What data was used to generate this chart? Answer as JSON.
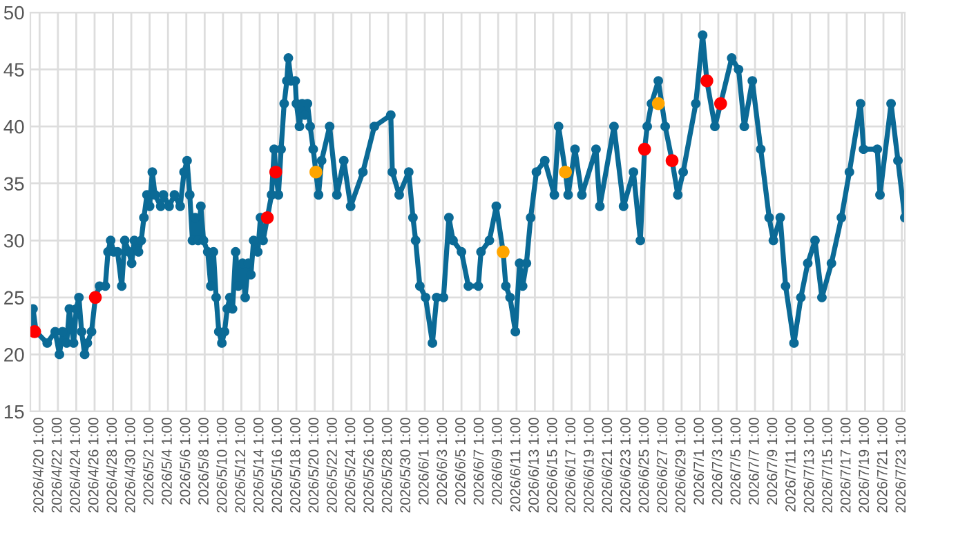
{
  "chart_data": {
    "type": "line",
    "marker": "circle",
    "grid": true,
    "xlim": [
      "2026-04-19T01:00",
      "2026-07-23T09:00"
    ],
    "xticks": [
      {
        "value": "2026-04-20T01:00",
        "label": "2026/4/20 1:00"
      },
      {
        "value": "2026-04-22T01:00",
        "label": "2026/4/22 1:00"
      },
      {
        "value": "2026-04-24T01:00",
        "label": "2026/4/24 1:00"
      },
      {
        "value": "2026-04-26T01:00",
        "label": "2026/4/26 1:00"
      },
      {
        "value": "2026-04-28T01:00",
        "label": "2026/4/28 1:00"
      },
      {
        "value": "2026-04-30T01:00",
        "label": "2026/4/30 1:00"
      },
      {
        "value": "2026-05-02T01:00",
        "label": "2026/5/2 1:00"
      },
      {
        "value": "2026-05-04T01:00",
        "label": "2026/5/4 1:00"
      },
      {
        "value": "2026-05-06T01:00",
        "label": "2026/5/6 1:00"
      },
      {
        "value": "2026-05-08T01:00",
        "label": "2026/5/8 1:00"
      },
      {
        "value": "2026-05-10T01:00",
        "label": "2026/5/10 1:00"
      },
      {
        "value": "2026-05-12T01:00",
        "label": "2026/5/12 1:00"
      },
      {
        "value": "2026-05-14T01:00",
        "label": "2026/5/14 1:00"
      },
      {
        "value": "2026-05-16T01:00",
        "label": "2026/5/16 1:00"
      },
      {
        "value": "2026-05-18T01:00",
        "label": "2026/5/18 1:00"
      },
      {
        "value": "2026-05-20T01:00",
        "label": "2026/5/20 1:00"
      },
      {
        "value": "2026-05-22T01:00",
        "label": "2026/5/22 1:00"
      },
      {
        "value": "2026-05-24T01:00",
        "label": "2026/5/24 1:00"
      },
      {
        "value": "2026-05-26T01:00",
        "label": "2026/5/26 1:00"
      },
      {
        "value": "2026-05-28T01:00",
        "label": "2026/5/28 1:00"
      },
      {
        "value": "2026-05-30T01:00",
        "label": "2026/5/30 1:00"
      },
      {
        "value": "2026-06-01T01:00",
        "label": "2026/6/1 1:00"
      },
      {
        "value": "2026-06-03T01:00",
        "label": "2026/6/3 1:00"
      },
      {
        "value": "2026-06-05T01:00",
        "label": "2026/6/5 1:00"
      },
      {
        "value": "2026-06-07T01:00",
        "label": "2026/6/7 1:00"
      },
      {
        "value": "2026-06-09T01:00",
        "label": "2026/6/9 1:00"
      },
      {
        "value": "2026-06-11T01:00",
        "label": "2026/6/11 1:00"
      },
      {
        "value": "2026-06-13T01:00",
        "label": "2026/6/13 1:00"
      },
      {
        "value": "2026-06-15T01:00",
        "label": "2026/6/15 1:00"
      },
      {
        "value": "2026-06-17T01:00",
        "label": "2026/6/17 1:00"
      },
      {
        "value": "2026-06-19T01:00",
        "label": "2026/6/19 1:00"
      },
      {
        "value": "2026-06-21T01:00",
        "label": "2026/6/21 1:00"
      },
      {
        "value": "2026-06-23T01:00",
        "label": "2026/6/23 1:00"
      },
      {
        "value": "2026-06-25T01:00",
        "label": "2026/6/25 1:00"
      },
      {
        "value": "2026-06-27T01:00",
        "label": "2026/6/27 1:00"
      },
      {
        "value": "2026-06-29T01:00",
        "label": "2026/6/29 1:00"
      },
      {
        "value": "2026-07-01T01:00",
        "label": "2026/7/1 1:00"
      },
      {
        "value": "2026-07-03T01:00",
        "label": "2026/7/3 1:00"
      },
      {
        "value": "2026-07-05T01:00",
        "label": "2026/7/5 1:00"
      },
      {
        "value": "2026-07-07T01:00",
        "label": "2026/7/7 1:00"
      },
      {
        "value": "2026-07-09T01:00",
        "label": "2026/7/9 1:00"
      },
      {
        "value": "2026-07-11T01:00",
        "label": "2026/7/11 1:00"
      },
      {
        "value": "2026-07-13T01:00",
        "label": "2026/7/13 1:00"
      },
      {
        "value": "2026-07-15T01:00",
        "label": "2026/7/15 1:00"
      },
      {
        "value": "2026-07-17T01:00",
        "label": "2026/7/17 1:00"
      },
      {
        "value": "2026-07-19T01:00",
        "label": "2026/7/19 1:00"
      },
      {
        "value": "2026-07-21T01:00",
        "label": "2026/7/21 1:00"
      },
      {
        "value": "2026-07-23T01:00",
        "label": "2026/7/23 1:00"
      }
    ],
    "ylim": [
      15,
      50
    ],
    "yticks": [
      15,
      20,
      25,
      30,
      35,
      40,
      45,
      50
    ],
    "series": [
      {
        "color": "#0b6a96",
        "x": [
          "2026-04-19T01:00",
          "2026-04-19T08:00",
          "2026-04-19T16:00",
          "2026-04-20T21:00",
          "2026-04-21T18:00",
          "2026-04-22T05:00",
          "2026-04-22T13:00",
          "2026-04-23T00:00",
          "2026-04-23T07:00",
          "2026-04-23T18:00",
          "2026-04-24T01:00",
          "2026-04-24T08:00",
          "2026-04-24T15:00",
          "2026-04-24T23:00",
          "2026-04-25T06:00",
          "2026-04-25T17:00",
          "2026-04-26T03:00",
          "2026-04-26T14:00",
          "2026-04-27T05:00",
          "2026-04-27T12:00",
          "2026-04-27T19:00",
          "2026-04-28T03:00",
          "2026-04-28T13:00",
          "2026-04-29T00:00",
          "2026-04-29T08:00",
          "2026-04-29T19:00",
          "2026-04-30T02:00",
          "2026-04-30T09:00",
          "2026-04-30T20:00",
          "2026-05-01T03:00",
          "2026-05-01T10:00",
          "2026-05-01T18:00",
          "2026-05-02T01:00",
          "2026-05-02T08:00",
          "2026-05-02T15:00",
          "2026-05-03T06:00",
          "2026-05-03T13:00",
          "2026-05-04T04:00",
          "2026-05-04T18:00",
          "2026-05-05T09:00",
          "2026-05-05T19:00",
          "2026-05-06T03:00",
          "2026-05-06T10:00",
          "2026-05-06T17:00",
          "2026-05-07T00:00",
          "2026-05-07T08:00",
          "2026-05-07T15:00",
          "2026-05-07T22:00",
          "2026-05-08T09:00",
          "2026-05-08T17:00",
          "2026-05-09T00:00",
          "2026-05-09T07:00",
          "2026-05-09T14:00",
          "2026-05-09T22:00",
          "2026-05-10T05:00",
          "2026-05-10T12:00",
          "2026-05-10T19:00",
          "2026-05-11T02:00",
          "2026-05-11T10:00",
          "2026-05-11T17:00",
          "2026-05-12T04:00",
          "2026-05-12T11:00",
          "2026-05-12T19:00",
          "2026-05-13T02:00",
          "2026-05-13T09:00",
          "2026-05-13T20:00",
          "2026-05-14T03:00",
          "2026-05-14T10:00",
          "2026-05-14T21:00",
          "2026-05-15T08:00",
          "2026-05-15T15:00",
          "2026-05-15T19:00",
          "2026-05-16T02:00",
          "2026-05-16T09:00",
          "2026-05-16T17:00",
          "2026-05-17T00:00",
          "2026-05-17T04:00",
          "2026-05-17T11:00",
          "2026-05-17T22:00",
          "2026-05-18T01:00",
          "2026-05-18T09:00",
          "2026-05-18T16:00",
          "2026-05-18T23:00",
          "2026-05-19T06:00",
          "2026-05-19T13:00",
          "2026-05-19T21:00",
          "2026-05-20T04:00",
          "2026-05-20T11:00",
          "2026-05-20T19:00",
          "2026-05-21T16:00",
          "2026-05-22T11:00",
          "2026-05-23T05:00",
          "2026-05-23T23:00",
          "2026-05-25T07:00",
          "2026-05-26T13:00",
          "2026-05-28T08:00",
          "2026-05-28T12:00",
          "2026-05-29T06:00",
          "2026-05-30T07:00",
          "2026-05-30T18:00",
          "2026-05-31T01:00",
          "2026-05-31T12:00",
          "2026-06-01T03:00",
          "2026-06-01T21:00",
          "2026-06-02T08:00",
          "2026-06-03T02:00",
          "2026-06-03T16:00",
          "2026-06-04T03:00",
          "2026-06-05T01:00",
          "2026-06-05T19:00",
          "2026-06-06T21:00",
          "2026-06-07T04:00",
          "2026-06-08T02:00",
          "2026-06-08T20:00",
          "2026-06-09T14:00",
          "2026-06-09T21:00",
          "2026-06-10T08:00",
          "2026-06-10T22:00",
          "2026-06-11T09:00",
          "2026-06-11T17:00",
          "2026-06-12T03:00",
          "2026-06-12T14:00",
          "2026-06-13T05:00",
          "2026-06-14T03:00",
          "2026-06-15T04:00",
          "2026-06-15T15:00",
          "2026-06-16T09:00",
          "2026-06-16T16:00",
          "2026-06-17T10:00",
          "2026-06-18T04:00",
          "2026-06-19T17:00",
          "2026-06-20T03:00",
          "2026-06-21T16:00",
          "2026-06-22T17:00",
          "2026-06-23T19:00",
          "2026-06-24T13:00",
          "2026-06-25T00:00",
          "2026-06-25T07:00",
          "2026-06-25T18:00",
          "2026-06-26T12:00",
          "2026-06-27T06:00",
          "2026-06-28T00:00",
          "2026-06-28T15:00",
          "2026-06-29T05:00",
          "2026-06-30T14:00",
          "2026-07-01T08:00",
          "2026-07-01T19:00",
          "2026-07-02T16:00",
          "2026-07-03T07:00",
          "2026-07-04T12:00",
          "2026-07-05T06:00",
          "2026-07-05T21:00",
          "2026-07-06T18:00",
          "2026-07-07T16:00",
          "2026-07-08T14:00",
          "2026-07-09T01:00",
          "2026-07-09T19:00",
          "2026-07-10T09:00",
          "2026-07-11T07:00",
          "2026-07-12T01:00",
          "2026-07-12T19:00",
          "2026-07-13T14:00",
          "2026-07-14T08:00",
          "2026-07-15T09:00",
          "2026-07-16T11:00",
          "2026-07-17T08:00",
          "2026-07-18T13:00",
          "2026-07-18T21:00",
          "2026-07-20T09:00",
          "2026-07-20T16:00",
          "2026-07-21T21:00",
          "2026-07-22T15:00",
          "2026-07-23T09:00"
        ],
        "values": [
          22,
          24,
          22,
          21,
          22,
          20,
          22,
          21,
          24,
          21,
          24,
          25,
          22,
          20,
          21,
          22,
          25,
          26,
          26,
          29,
          30,
          29,
          29,
          26,
          30,
          29,
          28,
          30,
          29,
          30,
          32,
          34,
          33,
          36,
          34,
          33,
          34,
          33,
          34,
          33,
          36,
          37,
          34,
          30,
          32,
          30,
          33,
          30,
          29,
          26,
          29,
          25,
          22,
          21,
          22,
          24,
          25,
          24,
          29,
          26,
          28,
          25,
          28,
          27,
          30,
          29,
          32,
          30,
          32,
          34,
          38,
          36,
          34,
          38,
          42,
          44,
          46,
          44,
          44,
          42,
          40,
          42,
          41,
          42,
          40,
          38,
          36,
          34,
          37,
          40,
          34,
          37,
          33,
          36,
          40,
          41,
          36,
          34,
          36,
          32,
          30,
          26,
          25,
          21,
          25,
          25,
          32,
          30,
          29,
          26,
          26,
          29,
          30,
          33,
          29,
          26,
          25,
          22,
          28,
          26,
          28,
          32,
          36,
          37,
          34,
          40,
          36,
          34,
          38,
          34,
          38,
          33,
          40,
          33,
          36,
          30,
          38,
          40,
          42,
          44,
          40,
          37,
          34,
          36,
          42,
          48,
          44,
          40,
          42,
          46,
          45,
          40,
          44,
          38,
          32,
          30,
          32,
          26,
          21,
          25,
          28,
          30,
          25,
          28,
          32,
          36,
          42,
          38,
          38,
          34,
          42,
          37,
          32
        ]
      },
      {
        "type": "scatter",
        "color": "#ff0000",
        "x": [
          "2026-04-19T12:00",
          "2026-04-26T03:00",
          "2026-05-14T21:00",
          "2026-05-15T19:00",
          "2026-06-25T00:00",
          "2026-06-28T00:00",
          "2026-07-01T19:00",
          "2026-07-03T07:00"
        ],
        "values": [
          22,
          25,
          32,
          36,
          38,
          37,
          44,
          42
        ]
      },
      {
        "type": "scatter",
        "color": "#ffa500",
        "x": [
          "2026-05-20T04:00",
          "2026-06-09T14:00",
          "2026-06-16T09:00",
          "2026-06-26T12:00"
        ],
        "values": [
          36,
          29,
          36,
          42
        ]
      }
    ]
  }
}
